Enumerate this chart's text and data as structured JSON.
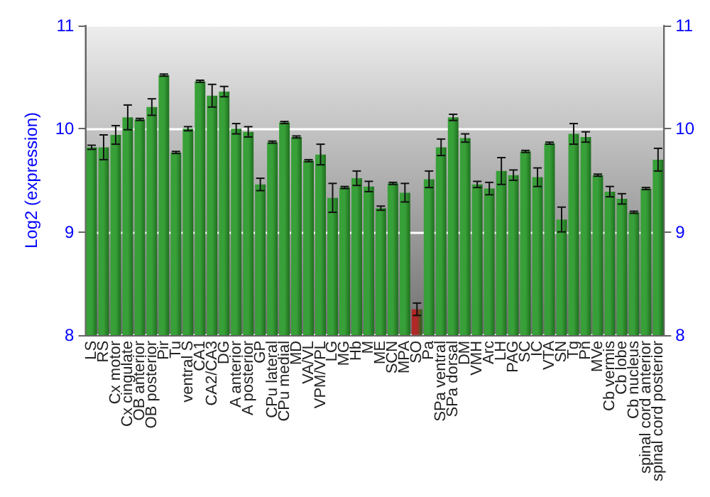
{
  "chart_data": {
    "type": "bar",
    "ylabel": "Log2 (expression)",
    "categories": [
      "LS",
      "RS",
      "Cx motor",
      "Cx cingulate",
      "OB anterior",
      "OB posterior",
      "Pir",
      "Tu",
      "ventral S",
      "CA1",
      "CA2/CA3",
      "DG",
      "A anterior",
      "A posterior",
      "GP",
      "CPu lateral",
      "CPu medial",
      "MD",
      "VA/VL",
      "VPM/VPL",
      "LG",
      "MG",
      "Hb",
      "M",
      "ME",
      "SCN",
      "MPA",
      "SO",
      "Pa",
      "SPa ventral",
      "SPa dorsal",
      "DM",
      "VMH",
      "Arc",
      "LH",
      "PAG",
      "SC",
      "IC",
      "VTA",
      "SN",
      "Tg",
      "Pn",
      "MVe",
      "Cb vermis",
      "Cb lobe",
      "Cb nucleus",
      "spinal cord anterior",
      "spinal cord posterior"
    ],
    "values": [
      9.82,
      9.82,
      9.94,
      10.11,
      10.09,
      10.21,
      10.52,
      9.77,
      10.0,
      10.46,
      10.32,
      10.36,
      10.0,
      9.97,
      9.46,
      9.87,
      10.06,
      9.92,
      9.69,
      9.75,
      9.33,
      9.43,
      9.52,
      9.44,
      9.23,
      9.47,
      9.38,
      8.25,
      9.51,
      9.82,
      10.11,
      9.91,
      9.46,
      9.42,
      9.59,
      9.55,
      9.78,
      9.53,
      9.86,
      9.12,
      9.95,
      9.92,
      9.55,
      9.39,
      9.32,
      9.19,
      9.42,
      9.7
    ],
    "errors": [
      0.02,
      0.12,
      0.09,
      0.12,
      0.01,
      0.08,
      0.01,
      0.01,
      0.02,
      0.01,
      0.11,
      0.05,
      0.05,
      0.05,
      0.06,
      0.01,
      0.01,
      0.01,
      0.01,
      0.1,
      0.14,
      0.01,
      0.07,
      0.05,
      0.02,
      0.01,
      0.09,
      0.06,
      0.08,
      0.08,
      0.03,
      0.04,
      0.03,
      0.06,
      0.13,
      0.05,
      0.01,
      0.09,
      0.01,
      0.12,
      0.1,
      0.05,
      0.01,
      0.05,
      0.05,
      0.01,
      0.01,
      0.11
    ],
    "colors": [
      "#38a038",
      "#38a038",
      "#38a038",
      "#38a038",
      "#38a038",
      "#38a038",
      "#38a038",
      "#38a038",
      "#38a038",
      "#38a038",
      "#38a038",
      "#38a038",
      "#38a038",
      "#38a038",
      "#38a038",
      "#38a038",
      "#38a038",
      "#38a038",
      "#38a038",
      "#38a038",
      "#38a038",
      "#38a038",
      "#38a038",
      "#38a038",
      "#38a038",
      "#38a038",
      "#38a038",
      "#b02828",
      "#38a038",
      "#38a038",
      "#38a038",
      "#38a038",
      "#38a038",
      "#38a038",
      "#38a038",
      "#38a038",
      "#38a038",
      "#38a038",
      "#38a038",
      "#38a038",
      "#38a038",
      "#38a038",
      "#38a038",
      "#38a038",
      "#38a038",
      "#38a038",
      "#38a038",
      "#38a038"
    ],
    "ylim": [
      8,
      11
    ],
    "yticks": [
      8,
      9,
      10,
      11
    ],
    "y2lim": [
      8,
      11
    ],
    "y2ticks": [
      8,
      9,
      10,
      11
    ],
    "grid": "y"
  }
}
